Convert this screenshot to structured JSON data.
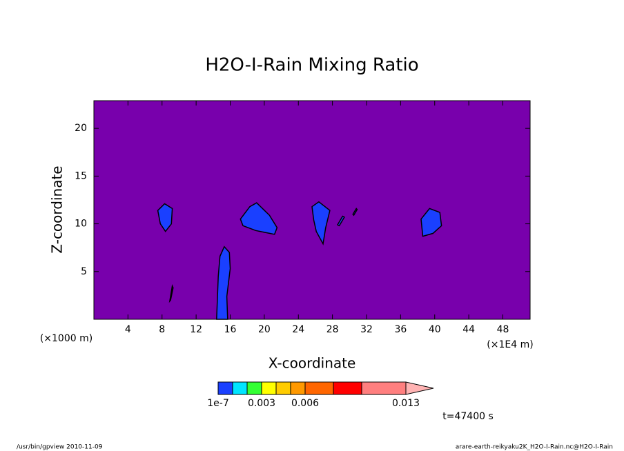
{
  "chart_data": {
    "type": "contour",
    "title": "H2O-I-Rain Mixing Ratio",
    "x_label": "X-coordinate",
    "y_label": "Z-coordinate",
    "x_unit": "(×1E4 m)",
    "y_unit": "(×1000 m)",
    "time_label": "t=47400 s",
    "footer_left": "/usr/bin/gpview  2010-11-09",
    "footer_right": "arare-earth-reikyaku2K_H2O-I-Rain.nc@H2O-I-Rain",
    "background_color": "#7800ac",
    "region_color": "#1a40ff",
    "xlim": [
      0,
      51.2
    ],
    "ylim": [
      0,
      22.9
    ],
    "xticks": [
      4,
      8,
      12,
      16,
      20,
      24,
      28,
      32,
      36,
      40,
      44,
      48
    ],
    "yticks": [
      5,
      10,
      15,
      20
    ],
    "regions": [
      {
        "x": [
          14.4,
          14.6,
          14.8,
          15.3,
          15.9,
          16.0,
          15.6,
          15.7
        ],
        "z": [
          0,
          4.5,
          6.6,
          7.6,
          7.0,
          5.3,
          2.4,
          0
        ]
      },
      {
        "x": [
          7.5,
          8.3,
          9.2,
          9.1,
          8.4,
          7.8
        ],
        "z": [
          11.4,
          12.1,
          11.6,
          10.0,
          9.2,
          10.0
        ]
      },
      {
        "x": [
          8.9,
          9.2,
          9.3,
          9.0
        ],
        "z": [
          1.9,
          3.5,
          3.3,
          2.0
        ]
      },
      {
        "x": [
          17.2,
          18.3,
          19.1,
          20.6,
          21.5,
          21.2,
          19.0,
          17.5
        ],
        "z": [
          10.5,
          11.8,
          12.2,
          10.9,
          9.6,
          8.9,
          9.3,
          9.8
        ]
      },
      {
        "x": [
          25.6,
          26.4,
          27.7,
          27.2,
          26.9,
          26.1,
          25.8
        ],
        "z": [
          11.8,
          12.3,
          11.4,
          9.6,
          7.9,
          9.2,
          10.4
        ]
      },
      {
        "x": [
          28.6,
          29.2,
          29.4,
          28.8
        ],
        "z": [
          9.9,
          10.8,
          10.7,
          9.8
        ]
      },
      {
        "x": [
          30.4,
          30.8,
          30.9,
          30.5
        ],
        "z": [
          11.0,
          11.6,
          11.5,
          10.9
        ]
      },
      {
        "x": [
          38.4,
          39.4,
          40.6,
          40.8,
          39.8,
          38.6
        ],
        "z": [
          10.5,
          11.6,
          11.2,
          9.8,
          9.0,
          8.7
        ]
      }
    ],
    "colorbar": {
      "colors": [
        "#1a40ff",
        "#00e5ff",
        "#33ff33",
        "#ffff00",
        "#ffcc00",
        "#ff9900",
        "#ff6600",
        "#ff0000",
        "#ff7f7f",
        "#ffb3b3"
      ],
      "labels": [
        {
          "value": 1e-07,
          "label": "1e-7"
        },
        0.003,
        0.006,
        0.013
      ]
    }
  }
}
